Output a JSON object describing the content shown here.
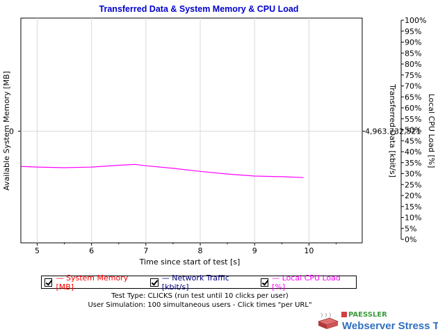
{
  "chart_data": {
    "type": "line",
    "title": "Transferred Data & System Memory & CPU Load",
    "xlabel": "Time since start of test [s]",
    "ylabel_left": "Available System Memory [MB]",
    "ylabel_right_inner": "Transferred Data [kbit/s]",
    "ylabel_right_outer": "Local CPU Load [%]",
    "xlim": [
      4.7,
      10.98
    ],
    "x_ticks": [
      5,
      6,
      7,
      8,
      9,
      10
    ],
    "left_axis_ticks": [
      "0"
    ],
    "right_inner_tick_label": "4,963.732,521",
    "cpu_axis": {
      "min": 0,
      "max": 100,
      "step": 5
    },
    "grid": true,
    "series": [
      {
        "name": "Local CPU Load [%]",
        "color": "#ff00ff",
        "axis": "cpu",
        "x": [
          4.7,
          5.0,
          5.5,
          6.0,
          6.5,
          6.8,
          7.0,
          7.5,
          8.0,
          8.5,
          9.0,
          9.5,
          9.9
        ],
        "y": [
          33.3,
          33.0,
          32.7,
          33.0,
          33.8,
          34.2,
          33.6,
          32.4,
          31.0,
          29.8,
          28.9,
          28.6,
          28.2
        ]
      }
    ],
    "legend": {
      "position": "bottom",
      "items": [
        {
          "label": "System Memory [MB]",
          "color": "#ff0000"
        },
        {
          "label": "Network Traffic [kbit/s]",
          "color": "#000080"
        },
        {
          "label": "Local CPU Load [%]",
          "color": "#ff00ff"
        }
      ]
    }
  },
  "footer": {
    "line1": "Test Type: CLICKS (run test until 10 clicks per user)",
    "line2": "User Simulation: 100 simultaneous users - Click times \"per URL\""
  },
  "brand": {
    "company": "PAESSLER",
    "product": "Webserver Stress Tool"
  }
}
